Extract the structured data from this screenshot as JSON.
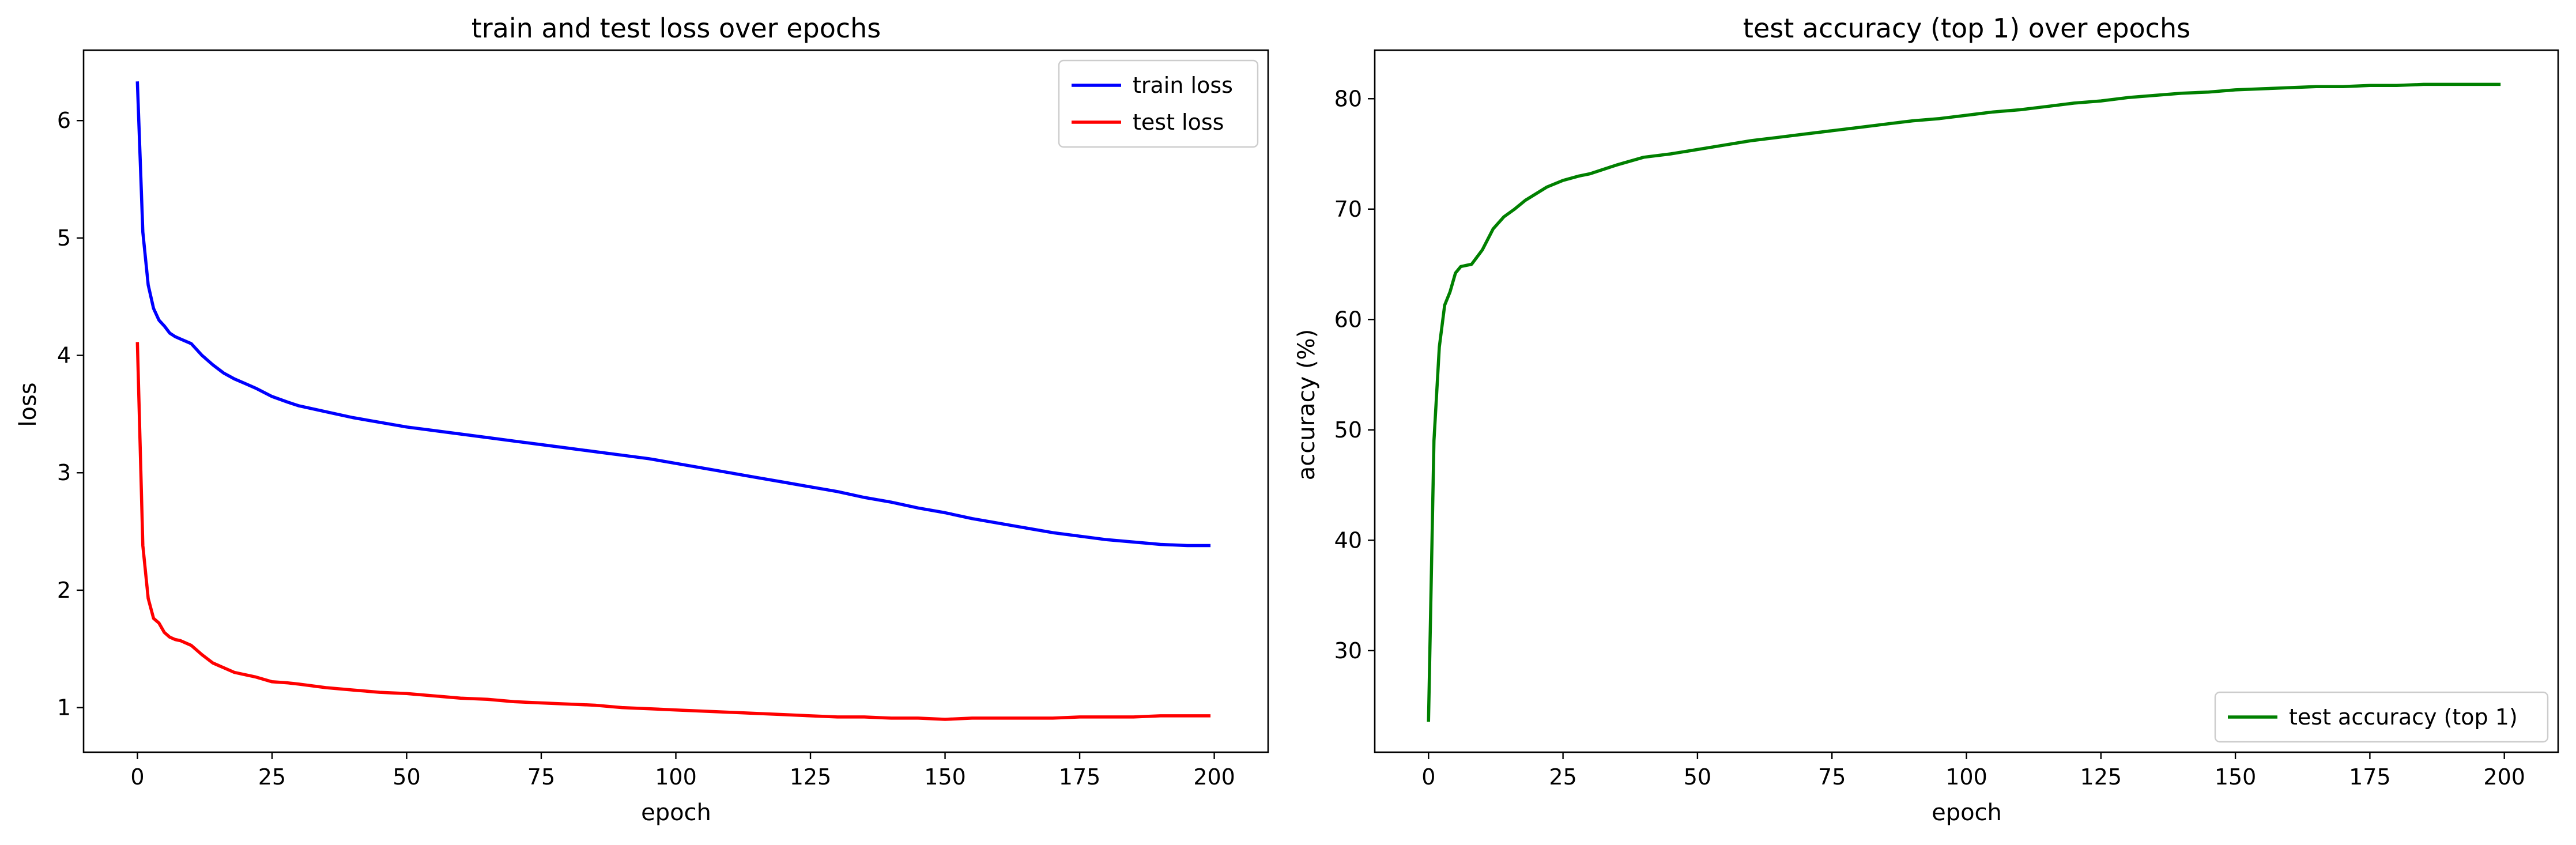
{
  "chart_data": [
    {
      "type": "line",
      "title": "train and test loss over epochs",
      "xlabel": "epoch",
      "ylabel": "loss",
      "xlim": [
        -10,
        210
      ],
      "ylim": [
        0.62,
        6.6
      ],
      "xticks": [
        0,
        25,
        50,
        75,
        100,
        125,
        150,
        175,
        200
      ],
      "yticks": [
        1,
        2,
        3,
        4,
        5,
        6
      ],
      "grid": false,
      "legend": "top-right",
      "series": [
        {
          "name": "train loss",
          "color": "#0000ff",
          "x": [
            0,
            1,
            2,
            3,
            4,
            5,
            6,
            7,
            8,
            10,
            12,
            14,
            16,
            18,
            20,
            22,
            25,
            28,
            30,
            35,
            40,
            45,
            50,
            55,
            60,
            65,
            70,
            75,
            80,
            85,
            90,
            95,
            100,
            105,
            110,
            115,
            120,
            125,
            130,
            135,
            140,
            145,
            150,
            155,
            160,
            165,
            170,
            175,
            180,
            185,
            190,
            195,
            199
          ],
          "y": [
            6.32,
            5.05,
            4.6,
            4.4,
            4.3,
            4.25,
            4.19,
            4.16,
            4.14,
            4.1,
            4.0,
            3.92,
            3.85,
            3.8,
            3.76,
            3.72,
            3.65,
            3.6,
            3.57,
            3.52,
            3.47,
            3.43,
            3.39,
            3.36,
            3.33,
            3.3,
            3.27,
            3.24,
            3.21,
            3.18,
            3.15,
            3.12,
            3.08,
            3.04,
            3.0,
            2.96,
            2.92,
            2.88,
            2.84,
            2.79,
            2.75,
            2.7,
            2.66,
            2.61,
            2.57,
            2.53,
            2.49,
            2.46,
            2.43,
            2.41,
            2.39,
            2.38,
            2.38
          ]
        },
        {
          "name": "test loss",
          "color": "#ff0000",
          "x": [
            0,
            1,
            2,
            3,
            4,
            5,
            6,
            7,
            8,
            10,
            12,
            14,
            16,
            18,
            20,
            22,
            25,
            28,
            30,
            35,
            40,
            45,
            50,
            55,
            60,
            65,
            70,
            75,
            80,
            85,
            90,
            95,
            100,
            105,
            110,
            115,
            120,
            125,
            130,
            135,
            140,
            145,
            150,
            155,
            160,
            165,
            170,
            175,
            180,
            185,
            190,
            195,
            199
          ],
          "y": [
            4.1,
            2.38,
            1.93,
            1.76,
            1.72,
            1.64,
            1.6,
            1.58,
            1.57,
            1.53,
            1.45,
            1.38,
            1.34,
            1.3,
            1.28,
            1.26,
            1.22,
            1.21,
            1.2,
            1.17,
            1.15,
            1.13,
            1.12,
            1.1,
            1.08,
            1.07,
            1.05,
            1.04,
            1.03,
            1.02,
            1.0,
            0.99,
            0.98,
            0.97,
            0.96,
            0.95,
            0.94,
            0.93,
            0.92,
            0.92,
            0.91,
            0.91,
            0.9,
            0.91,
            0.91,
            0.91,
            0.91,
            0.92,
            0.92,
            0.92,
            0.93,
            0.93,
            0.93
          ]
        }
      ]
    },
    {
      "type": "line",
      "title": "test accuracy (top 1) over epochs",
      "xlabel": "epoch",
      "ylabel": "accuracy (%)",
      "xlim": [
        -10,
        210
      ],
      "ylim": [
        20.8,
        84.4
      ],
      "xticks": [
        0,
        25,
        50,
        75,
        100,
        125,
        150,
        175,
        200
      ],
      "yticks": [
        30,
        40,
        50,
        60,
        70,
        80
      ],
      "grid": false,
      "legend": "bottom-right",
      "series": [
        {
          "name": "test accuracy (top 1)",
          "color": "#008000",
          "x": [
            0,
            1,
            2,
            3,
            4,
            5,
            6,
            8,
            10,
            12,
            14,
            16,
            18,
            20,
            22,
            25,
            28,
            30,
            35,
            40,
            45,
            50,
            55,
            60,
            65,
            70,
            75,
            80,
            85,
            90,
            95,
            100,
            105,
            110,
            115,
            120,
            125,
            130,
            135,
            140,
            145,
            150,
            155,
            160,
            165,
            170,
            175,
            180,
            185,
            190,
            195,
            199
          ],
          "y": [
            23.7,
            49.0,
            57.5,
            61.3,
            62.5,
            64.2,
            64.8,
            65.0,
            66.3,
            68.2,
            69.3,
            70.0,
            70.8,
            71.4,
            72.0,
            72.6,
            73.0,
            73.2,
            74.0,
            74.7,
            75.0,
            75.4,
            75.8,
            76.2,
            76.5,
            76.8,
            77.1,
            77.4,
            77.7,
            78.0,
            78.2,
            78.5,
            78.8,
            79.0,
            79.3,
            79.6,
            79.8,
            80.1,
            80.3,
            80.5,
            80.6,
            80.8,
            80.9,
            81.0,
            81.1,
            81.1,
            81.2,
            81.2,
            81.3,
            81.3,
            81.3,
            81.3
          ]
        }
      ]
    }
  ]
}
